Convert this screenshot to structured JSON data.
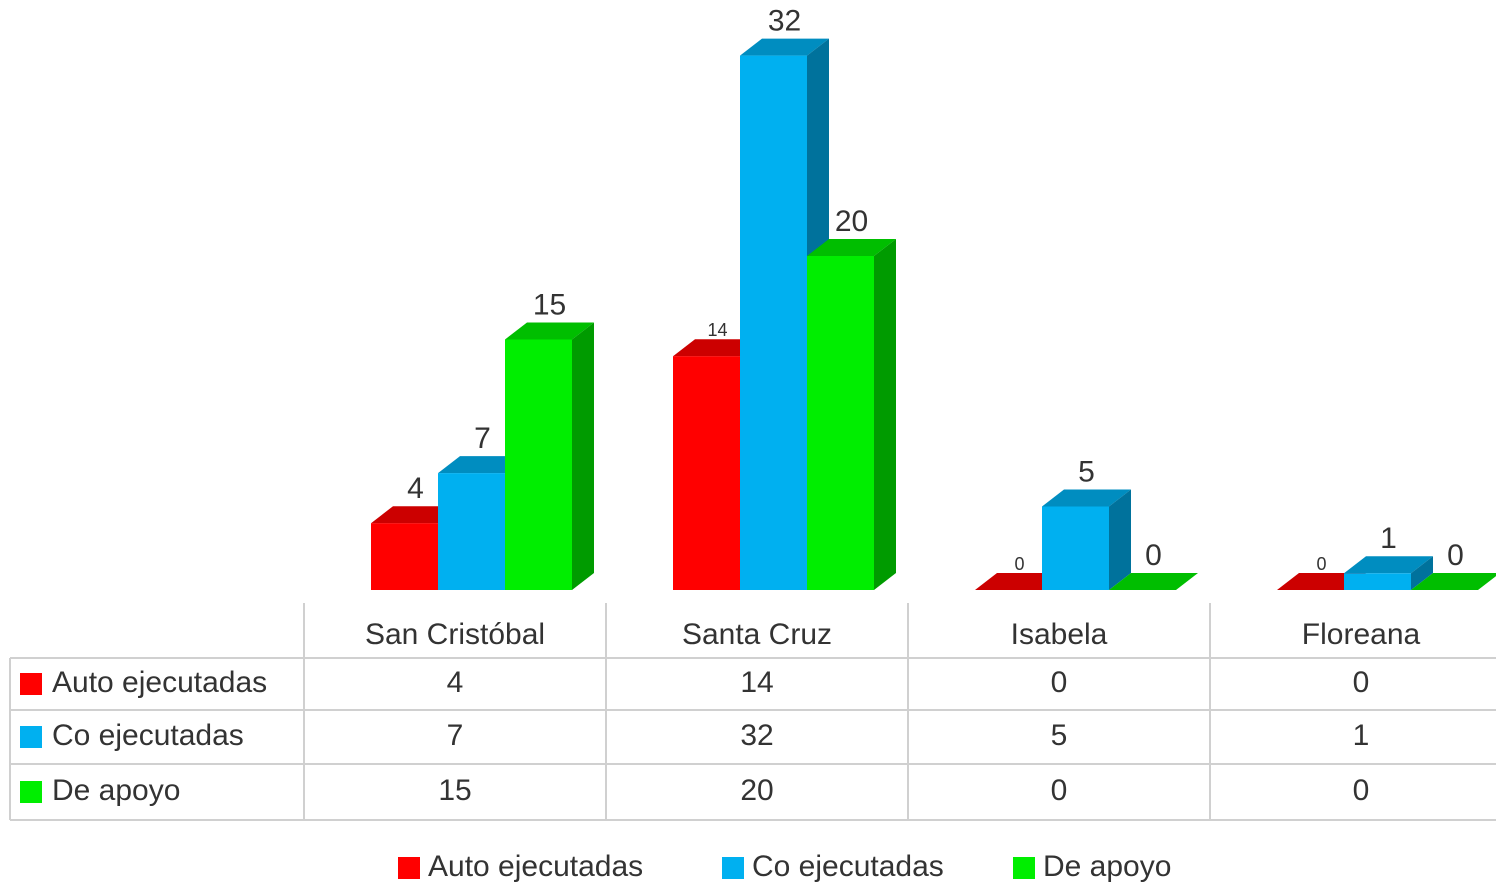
{
  "chart_data": {
    "type": "bar",
    "categories": [
      "San Cristóbal",
      "Santa Cruz",
      "Isabela",
      "Floreana"
    ],
    "series": [
      {
        "name": "Auto ejecutadas",
        "color": "#ff0000",
        "values": [
          4,
          14,
          0,
          0
        ]
      },
      {
        "name": "Co ejecutadas",
        "color": "#00b0f0",
        "values": [
          7,
          32,
          5,
          1
        ]
      },
      {
        "name": "De apoyo",
        "color": "#00ee00",
        "values": [
          15,
          20,
          0,
          0
        ]
      }
    ]
  }
}
